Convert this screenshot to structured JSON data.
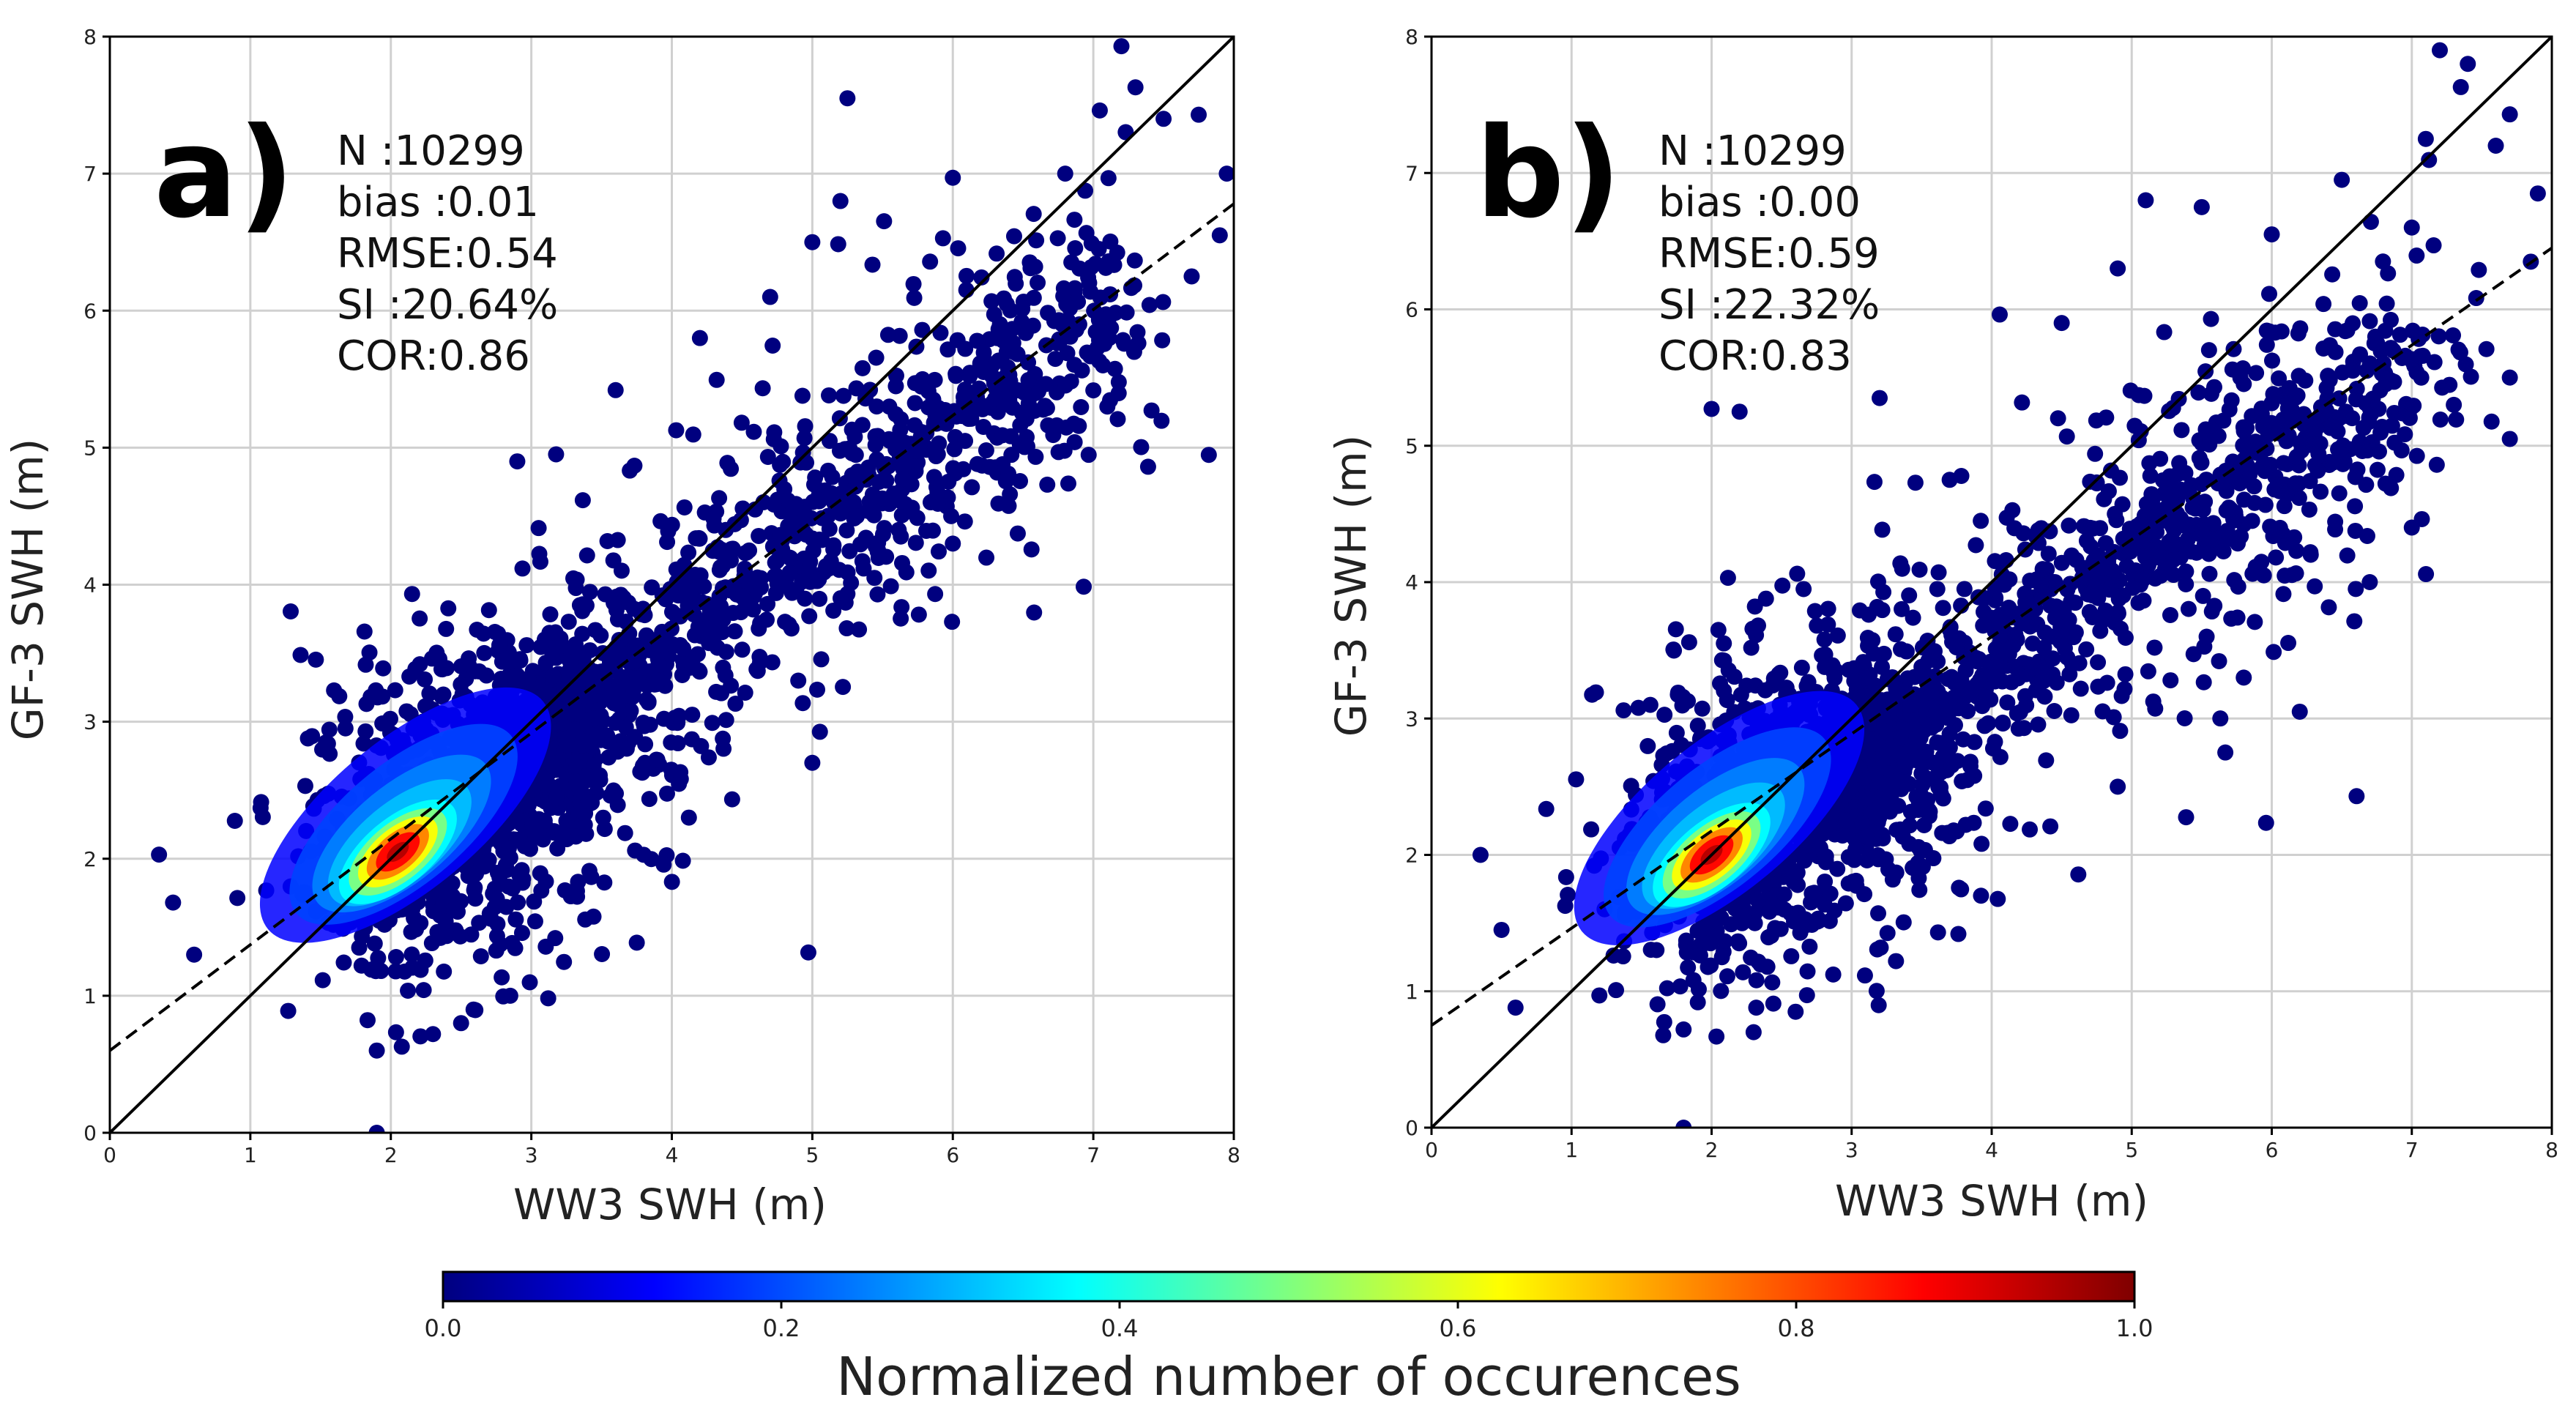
{
  "chart_data": [
    {
      "type": "scatter",
      "panel_label": "a)",
      "xlabel": "WW3 SWH (m)",
      "ylabel": "GF-3 SWH (m)",
      "xlim": [
        0,
        8
      ],
      "ylim": [
        0,
        8
      ],
      "xticks": [
        "0",
        "1",
        "2",
        "3",
        "4",
        "5",
        "6",
        "7",
        "8"
      ],
      "yticks": [
        "0",
        "1",
        "2",
        "3",
        "4",
        "5",
        "6",
        "7",
        "8"
      ],
      "grid": true,
      "stats": [
        "N :10299",
        "bias :0.01",
        "RMSE:0.54",
        "SI :20.64%",
        "COR:0.86"
      ],
      "density_center": [
        2.05,
        2.05
      ],
      "density_max_value": 1.0,
      "reference_line": {
        "style": "solid",
        "x": [
          0,
          8
        ],
        "y": [
          0,
          8
        ]
      },
      "regression_line": {
        "style": "dashed",
        "x": [
          0,
          8
        ],
        "y": [
          0.6,
          6.78
        ]
      },
      "outlier_points": [
        [
          0.35,
          2.03
        ],
        [
          0.45,
          1.68
        ],
        [
          0.6,
          1.3
        ],
        [
          1.9,
          0.6
        ],
        [
          2.3,
          0.72
        ],
        [
          1.9,
          0.0
        ],
        [
          2.85,
          1.0
        ],
        [
          5.25,
          7.55
        ],
        [
          7.2,
          7.93
        ],
        [
          7.3,
          7.63
        ],
        [
          7.5,
          7.4
        ],
        [
          7.75,
          7.43
        ],
        [
          7.95,
          7.0
        ],
        [
          7.9,
          6.55
        ],
        [
          7.7,
          6.25
        ],
        [
          6.8,
          7.0
        ],
        [
          6.0,
          6.97
        ],
        [
          5.2,
          6.8
        ],
        [
          4.7,
          6.1
        ],
        [
          5.0,
          6.5
        ],
        [
          4.2,
          5.8
        ],
        [
          3.6,
          5.42
        ],
        [
          2.9,
          4.9
        ],
        [
          5.0,
          2.7
        ],
        [
          4.9,
          3.3
        ],
        [
          6.0,
          4.3
        ],
        [
          7.1,
          5.3
        ],
        [
          6.3,
          5.5
        ],
        [
          6.9,
          5.9
        ],
        [
          2.5,
          0.8
        ]
      ]
    },
    {
      "type": "scatter",
      "panel_label": "b)",
      "xlabel": "WW3 SWH (m)",
      "ylabel": "GF-3 SWH (m)",
      "xlim": [
        0,
        8
      ],
      "ylim": [
        0,
        8
      ],
      "xticks": [
        "0",
        "1",
        "2",
        "3",
        "4",
        "5",
        "6",
        "7",
        "8"
      ],
      "yticks": [
        "0",
        "1",
        "2",
        "3",
        "4",
        "5",
        "6",
        "7",
        "8"
      ],
      "grid": true,
      "stats": [
        "N :10299",
        "bias :0.00",
        "RMSE:0.59",
        "SI :22.32%",
        "COR:0.83"
      ],
      "density_center": [
        2.0,
        2.0
      ],
      "density_max_value": 1.0,
      "reference_line": {
        "style": "solid",
        "x": [
          0,
          8
        ],
        "y": [
          0,
          8
        ]
      },
      "regression_line": {
        "style": "dashed",
        "x": [
          0,
          8
        ],
        "y": [
          0.75,
          6.45
        ]
      },
      "outlier_points": [
        [
          0.35,
          2.0
        ],
        [
          0.5,
          1.45
        ],
        [
          0.6,
          0.88
        ],
        [
          1.8,
          0.0
        ],
        [
          2.3,
          0.7
        ],
        [
          1.8,
          0.72
        ],
        [
          2.6,
          0.85
        ],
        [
          2.0,
          5.27
        ],
        [
          2.2,
          5.25
        ],
        [
          5.1,
          6.8
        ],
        [
          5.5,
          6.75
        ],
        [
          6.2,
          3.05
        ],
        [
          6.6,
          3.95
        ],
        [
          7.2,
          7.9
        ],
        [
          7.4,
          7.8
        ],
        [
          7.35,
          7.63
        ],
        [
          7.7,
          7.43
        ],
        [
          7.6,
          7.2
        ],
        [
          7.9,
          6.85
        ],
        [
          7.85,
          6.35
        ],
        [
          7.7,
          5.5
        ],
        [
          7.7,
          5.05
        ],
        [
          7.1,
          7.25
        ],
        [
          7.0,
          6.6
        ],
        [
          6.5,
          6.95
        ],
        [
          6.0,
          6.55
        ],
        [
          4.9,
          6.3
        ],
        [
          4.5,
          5.9
        ],
        [
          3.2,
          5.35
        ],
        [
          7.3,
          5.3
        ],
        [
          7.0,
          4.4
        ],
        [
          6.7,
          4.0
        ],
        [
          5.8,
          3.3
        ],
        [
          4.9,
          2.5
        ]
      ]
    }
  ],
  "colorbar": {
    "label": "Normalized number of occurences",
    "ticks": [
      "0.0",
      "0.2",
      "0.4",
      "0.6",
      "0.8",
      "1.0"
    ],
    "range": [
      0,
      1
    ],
    "colormap": "jet"
  },
  "colors": {
    "jet": [
      "#00007f",
      "#0000ff",
      "#007fff",
      "#00ffff",
      "#7fff7f",
      "#ffff00",
      "#ff7f00",
      "#ff0000",
      "#7f0000"
    ],
    "axis": "#000000",
    "grid": "#d0d0d0",
    "background": "#ffffff"
  }
}
